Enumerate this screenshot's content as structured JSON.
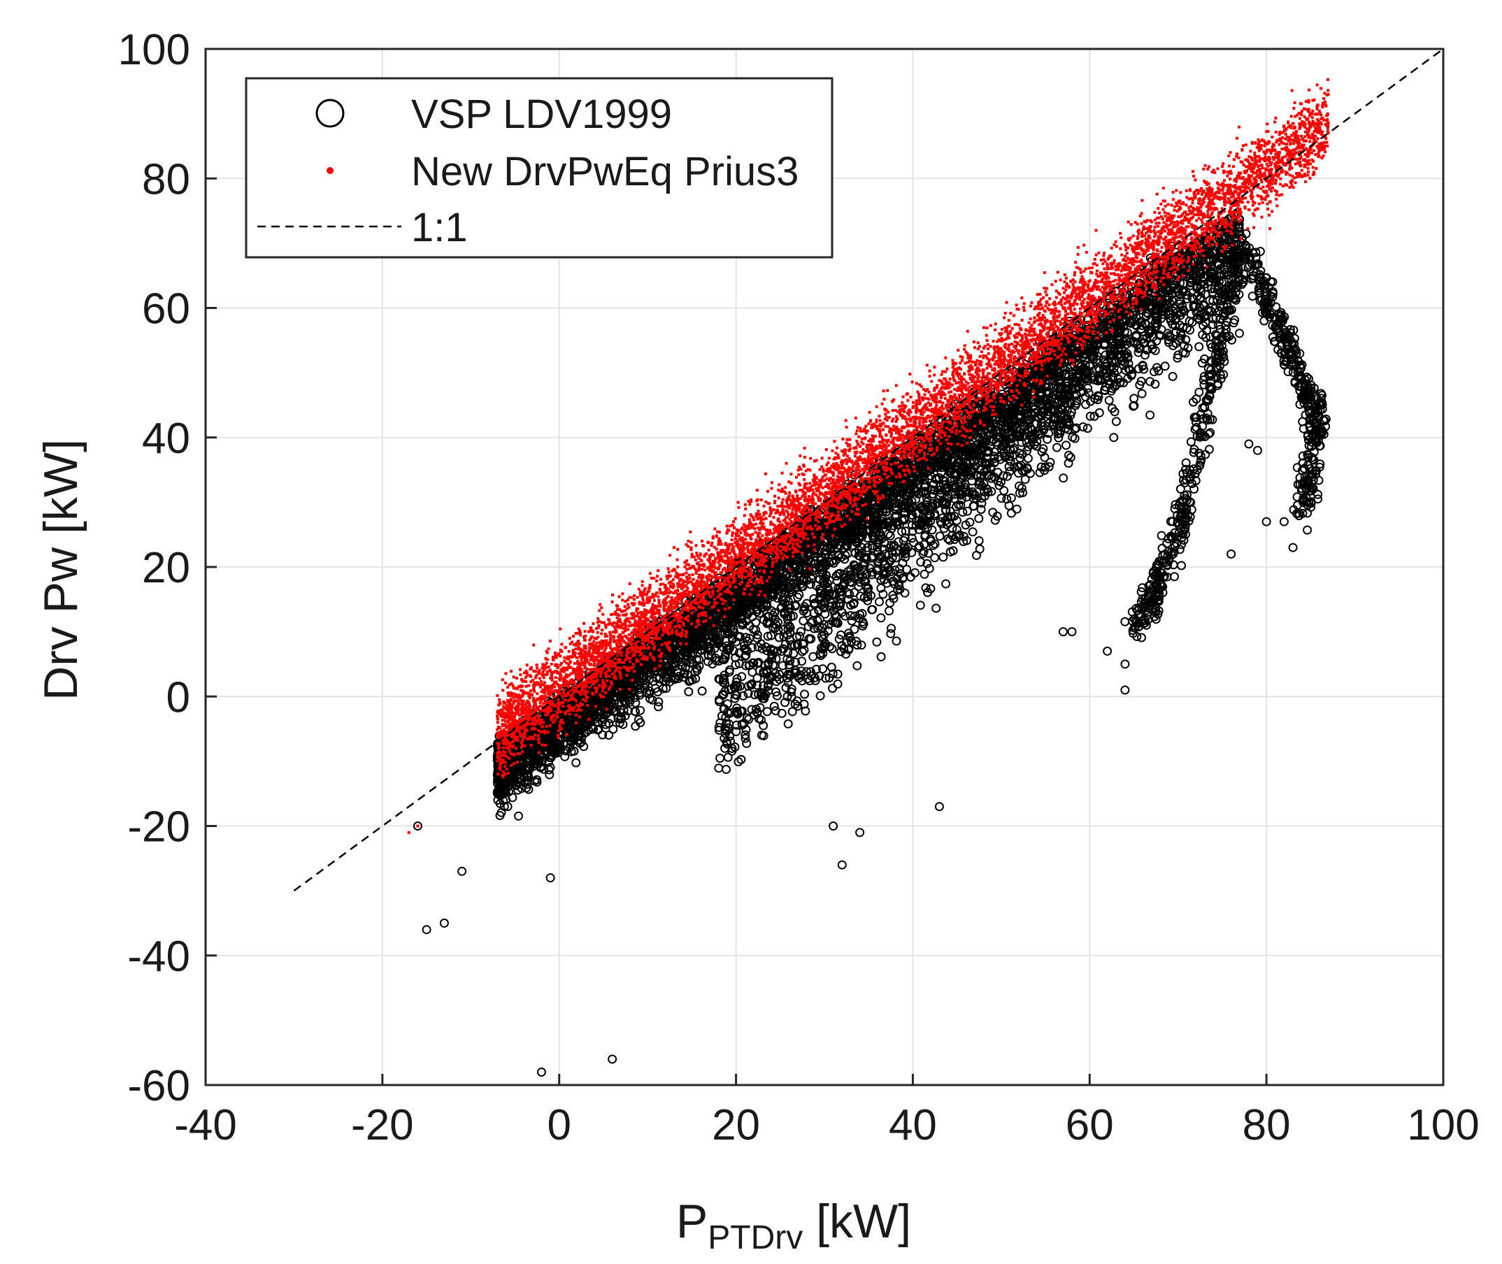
{
  "chart_data": {
    "type": "scatter",
    "title": "",
    "xlabel": {
      "main": "P",
      "subscript": "PTDrv",
      "unit": " [kW]"
    },
    "ylabel": "Drv Pw [kW]",
    "xlim": [
      -40,
      100
    ],
    "ylim": [
      -60,
      100
    ],
    "xticks": [
      -40,
      -20,
      0,
      20,
      40,
      60,
      80,
      100
    ],
    "yticks": [
      -60,
      -40,
      -20,
      0,
      20,
      40,
      60,
      80,
      100
    ],
    "xtick_labels": [
      "-40",
      "-20",
      "0",
      "20",
      "40",
      "60",
      "80",
      "100"
    ],
    "ytick_labels": [
      "-60",
      "-40",
      "-20",
      "0",
      "20",
      "40",
      "60",
      "80",
      "100"
    ],
    "grid": true,
    "legend_location": "top-left",
    "series": [
      {
        "name": "VSP LDV1999",
        "marker": "open-circle",
        "color": "#000000",
        "description_points": {
          "main_cloud": {
            "x_range": [
              -8,
              78
            ],
            "relation": "y ≈ x - 4, spread ±6"
          },
          "lower_tail": {
            "x_range": [
              20,
              60
            ],
            "relation": "y ≈ 1.2x - 25 (lower scatter)"
          },
          "branch_1": [
            [
              77,
              70
            ],
            [
              75,
              55
            ],
            [
              73,
              45
            ],
            [
              71,
              30
            ],
            [
              69,
              22
            ],
            [
              67,
              15
            ],
            [
              65,
              10
            ]
          ],
          "branch_2": [
            [
              77,
              70
            ],
            [
              80,
              62
            ],
            [
              82,
              55
            ],
            [
              84,
              48
            ],
            [
              86,
              44
            ],
            [
              85,
              36
            ],
            [
              84,
              28
            ]
          ],
          "outliers": [
            [
              -2,
              -58
            ],
            [
              6,
              -56
            ],
            [
              -15,
              -36
            ],
            [
              -13,
              -35
            ],
            [
              -16,
              -20
            ],
            [
              -11,
              -27
            ],
            [
              32,
              -26
            ],
            [
              31,
              -20
            ],
            [
              34,
              -21
            ],
            [
              43,
              -17
            ],
            [
              -1,
              -28
            ],
            [
              57,
              10
            ],
            [
              58,
              10
            ],
            [
              62,
              7
            ],
            [
              64,
              1
            ],
            [
              64,
              5
            ],
            [
              76,
              22
            ],
            [
              78,
              39
            ],
            [
              79,
              38
            ],
            [
              83,
              23
            ],
            [
              80,
              27
            ],
            [
              82,
              27
            ]
          ]
        }
      },
      {
        "name": "New DrvPwEq Prius3",
        "marker": "point",
        "color": "#ff0000",
        "description_points": {
          "main_cloud": {
            "x_range": [
              -8,
              87
            ],
            "relation": "y ≈ x + 1, spread ±4"
          },
          "extremes": [
            [
              -16,
              -20
            ],
            [
              -17,
              -21
            ],
            [
              -7,
              -3
            ],
            [
              87,
              87
            ],
            [
              85,
              88
            ]
          ]
        }
      },
      {
        "name": "1:1",
        "marker": "dashed-line",
        "color": "#000000",
        "x": [
          -30,
          100
        ],
        "y": [
          -30,
          100
        ]
      }
    ]
  }
}
